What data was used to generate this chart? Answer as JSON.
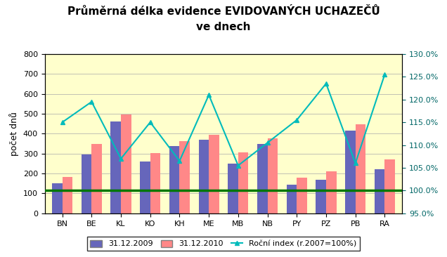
{
  "title_line1": "Průměrná délka evidence EVIDOVANÝCH UCHAZEČŮ",
  "title_line2": "ve dnech",
  "categories": [
    "BN",
    "BE",
    "KL",
    "KO",
    "KH",
    "ME",
    "MB",
    "NB",
    "PY",
    "PZ",
    "PB",
    "RA"
  ],
  "values_2009": [
    150,
    295,
    462,
    260,
    337,
    370,
    250,
    347,
    145,
    170,
    415,
    220
  ],
  "values_2010": [
    183,
    350,
    497,
    303,
    363,
    395,
    307,
    378,
    178,
    210,
    447,
    272
  ],
  "index_values": [
    115.0,
    119.5,
    107.0,
    115.0,
    106.5,
    121.0,
    105.5,
    110.5,
    115.5,
    123.5,
    106.0,
    125.5
  ],
  "bar_color_2009": "#6666BB",
  "bar_color_2010": "#FF8888",
  "line_color": "#00BBBB",
  "line_marker": "^",
  "ylabel_left": "počet dnů",
  "ylim_left": [
    0,
    800
  ],
  "yticks_left": [
    0,
    100,
    200,
    300,
    400,
    500,
    600,
    700,
    800
  ],
  "ylim_right": [
    95.0,
    130.0
  ],
  "yticks_right": [
    95.0,
    100.0,
    105.0,
    110.0,
    115.0,
    120.0,
    125.0,
    130.0
  ],
  "legend_2009": "31.12.2009",
  "legend_2010": "31.12.2010",
  "legend_index": "Roční index (r.2007=100%)",
  "hline_value": 100.0,
  "hline_color": "#007700",
  "plot_bg_color": "#FFFFCC",
  "outer_bg_color": "#FFFFFF",
  "grid_color": "#AAAAAA",
  "border_color": "#000000"
}
